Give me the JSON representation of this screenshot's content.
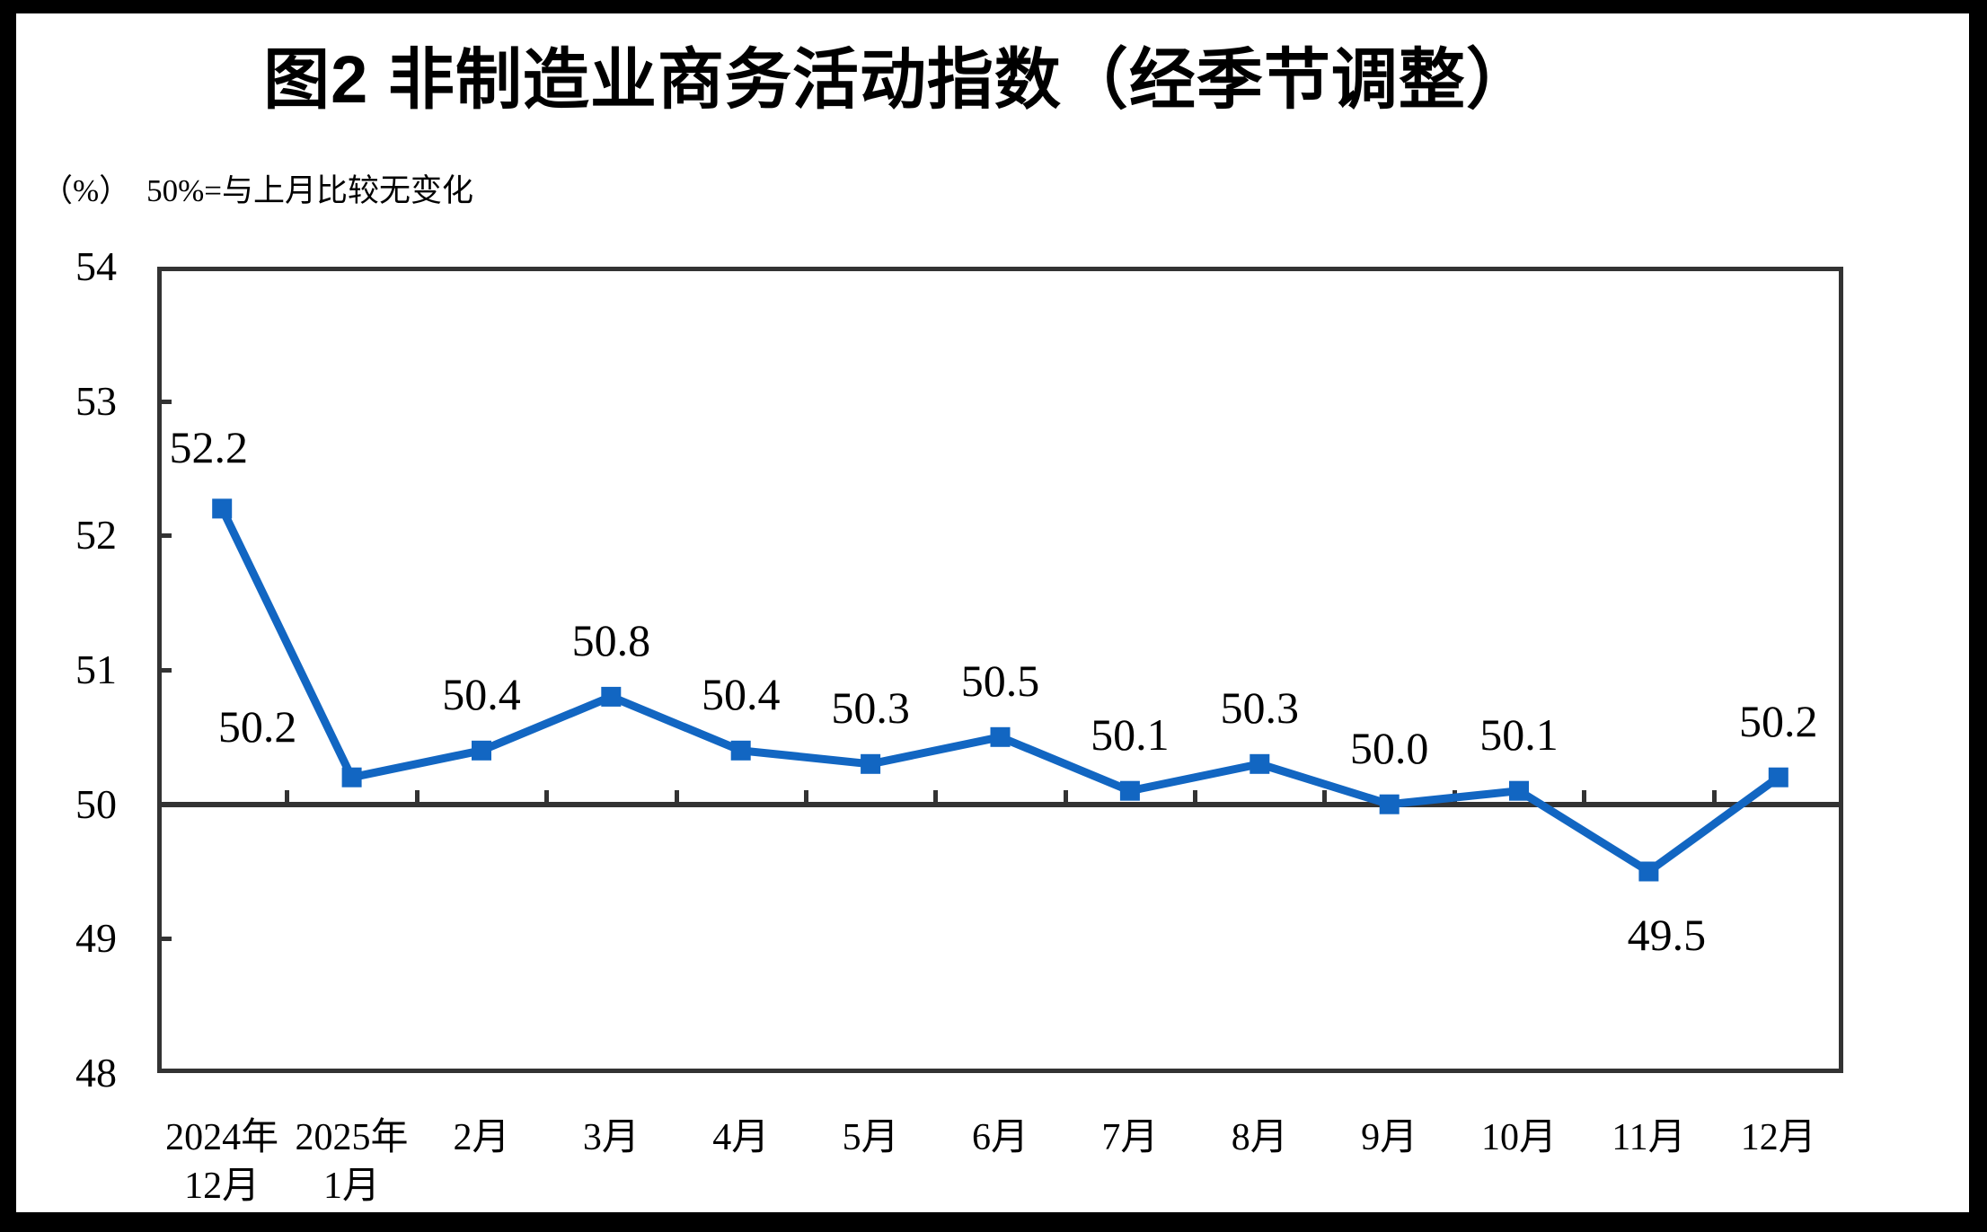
{
  "frame": {
    "border_color": "#000000",
    "panel_color": "#ffffff"
  },
  "header": {
    "title": "图2 非制造业商务活动指数（经季节调整）",
    "unit_label": "（%）",
    "note": "50%=与上月比较无变化"
  },
  "chart_data": {
    "type": "line",
    "title": "图2 非制造业商务活动指数（经季节调整）",
    "subtitle": "（%） 50%=与上月比较无变化",
    "categories": [
      [
        "2024年",
        "12月"
      ],
      [
        "2025年",
        "1月"
      ],
      [
        "2月"
      ],
      [
        "3月"
      ],
      [
        "4月"
      ],
      [
        "5月"
      ],
      [
        "6月"
      ],
      [
        "7月"
      ],
      [
        "8月"
      ],
      [
        "9月"
      ],
      [
        "10月"
      ],
      [
        "11月"
      ],
      [
        "12月"
      ]
    ],
    "values": [
      52.2,
      50.2,
      50.4,
      50.8,
      50.4,
      50.3,
      50.5,
      50.1,
      50.3,
      50.0,
      50.1,
      49.5,
      50.2
    ],
    "data_labels": [
      "52.2",
      "50.2",
      "50.4",
      "50.8",
      "50.4",
      "50.3",
      "50.5",
      "50.1",
      "50.3",
      "50.0",
      "50.1",
      "49.5",
      "50.2"
    ],
    "ylim": [
      48,
      54
    ],
    "yticks": [
      48,
      49,
      50,
      51,
      52,
      53,
      54
    ],
    "reference_line": 50,
    "grid": false,
    "legend": "none",
    "marker": "square",
    "line_color": "#1266C2",
    "axis_color": "#333333",
    "label_color": "#000000"
  }
}
